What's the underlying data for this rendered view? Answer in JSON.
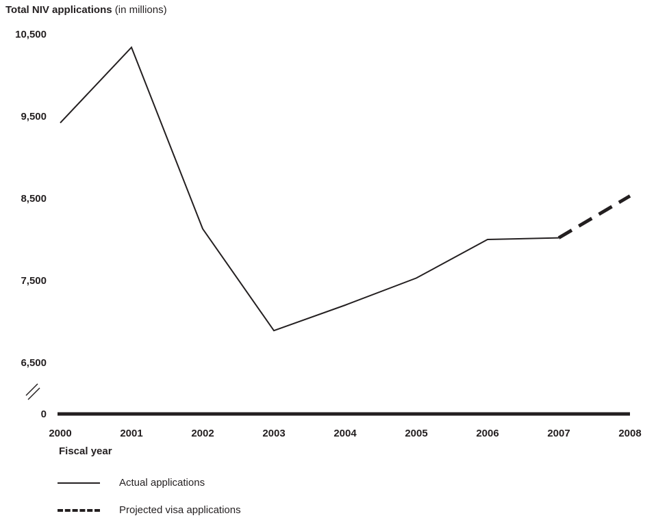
{
  "chart_data": {
    "type": "line",
    "title": "Total NIV applications",
    "title_suffix": "(in millions)",
    "xlabel": "Fiscal year",
    "ylabel": "",
    "x": [
      "2000",
      "2001",
      "2002",
      "2003",
      "2004",
      "2005",
      "2006",
      "2007",
      "2008"
    ],
    "y_ticks": [
      "10,500",
      "9,500",
      "8,500",
      "7,500",
      "6,500",
      "0"
    ],
    "ylim": [
      6500,
      10500
    ],
    "axis_break": true,
    "grid": false,
    "legend_position": "bottom-left",
    "series": [
      {
        "name": "Actual applications",
        "style": "solid",
        "points": [
          {
            "x": "2000",
            "y": 9420
          },
          {
            "x": "2001",
            "y": 10340
          },
          {
            "x": "2002",
            "y": 8130
          },
          {
            "x": "2003",
            "y": 6890
          },
          {
            "x": "2004",
            "y": 7200
          },
          {
            "x": "2005",
            "y": 7530
          },
          {
            "x": "2006",
            "y": 8000
          },
          {
            "x": "2007",
            "y": 8020
          }
        ]
      },
      {
        "name": "Projected visa applications",
        "style": "dashed",
        "points": [
          {
            "x": "2007",
            "y": 8020
          },
          {
            "x": "2008",
            "y": 8530
          }
        ]
      }
    ],
    "color": "#231f20"
  }
}
